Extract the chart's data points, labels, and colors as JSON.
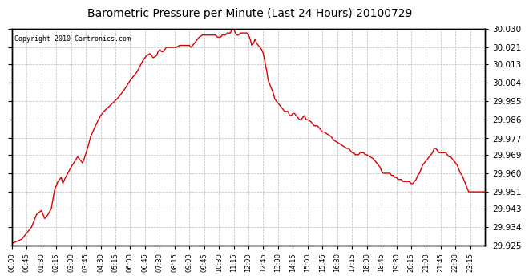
{
  "title": "Barometric Pressure per Minute (Last 24 Hours) 20100729",
  "copyright": "Copyright 2010 Cartronics.com",
  "line_color": "#dd0000",
  "background_color": "#ffffff",
  "grid_color": "#bbbbbb",
  "ylim": [
    29.925,
    30.03
  ],
  "yticks": [
    29.925,
    29.934,
    29.943,
    29.951,
    29.96,
    29.969,
    29.977,
    29.986,
    29.995,
    30.004,
    30.013,
    30.021,
    30.03
  ],
  "xtick_labels": [
    "00:00",
    "00:45",
    "01:30",
    "02:15",
    "03:00",
    "03:45",
    "04:30",
    "05:15",
    "06:00",
    "06:45",
    "07:30",
    "08:15",
    "09:00",
    "09:45",
    "10:30",
    "11:15",
    "12:00",
    "12:45",
    "13:30",
    "14:15",
    "15:00",
    "15:45",
    "16:30",
    "17:15",
    "18:00",
    "18:45",
    "19:30",
    "20:15",
    "21:00",
    "21:45",
    "22:30",
    "23:15"
  ],
  "n_minutes": 1440,
  "key_points": [
    [
      0,
      29.926
    ],
    [
      30,
      29.928
    ],
    [
      60,
      29.934
    ],
    [
      75,
      29.94
    ],
    [
      90,
      29.942
    ],
    [
      100,
      29.938
    ],
    [
      110,
      29.94
    ],
    [
      120,
      29.943
    ],
    [
      130,
      29.952
    ],
    [
      140,
      29.956
    ],
    [
      150,
      29.958
    ],
    [
      155,
      29.955
    ],
    [
      160,
      29.957
    ],
    [
      170,
      29.96
    ],
    [
      180,
      29.963
    ],
    [
      200,
      29.968
    ],
    [
      210,
      29.966
    ],
    [
      215,
      29.965
    ],
    [
      220,
      29.967
    ],
    [
      230,
      29.972
    ],
    [
      240,
      29.978
    ],
    [
      260,
      29.985
    ],
    [
      270,
      29.988
    ],
    [
      280,
      29.99
    ],
    [
      300,
      29.993
    ],
    [
      320,
      29.996
    ],
    [
      330,
      29.998
    ],
    [
      340,
      30.0
    ],
    [
      360,
      30.005
    ],
    [
      380,
      30.009
    ],
    [
      390,
      30.012
    ],
    [
      400,
      30.015
    ],
    [
      410,
      30.017
    ],
    [
      420,
      30.018
    ],
    [
      430,
      30.016
    ],
    [
      440,
      30.017
    ],
    [
      445,
      30.019
    ],
    [
      450,
      30.02
    ],
    [
      455,
      30.019
    ],
    [
      460,
      30.019
    ],
    [
      465,
      30.02
    ],
    [
      470,
      30.021
    ],
    [
      480,
      30.021
    ],
    [
      490,
      30.021
    ],
    [
      500,
      30.021
    ],
    [
      510,
      30.022
    ],
    [
      520,
      30.022
    ],
    [
      530,
      30.022
    ],
    [
      540,
      30.022
    ],
    [
      545,
      30.021
    ],
    [
      550,
      30.022
    ],
    [
      555,
      30.023
    ],
    [
      560,
      30.024
    ],
    [
      565,
      30.025
    ],
    [
      570,
      30.026
    ],
    [
      580,
      30.027
    ],
    [
      590,
      30.027
    ],
    [
      600,
      30.027
    ],
    [
      610,
      30.027
    ],
    [
      620,
      30.027
    ],
    [
      625,
      30.026
    ],
    [
      630,
      30.026
    ],
    [
      635,
      30.026
    ],
    [
      640,
      30.027
    ],
    [
      645,
      30.027
    ],
    [
      650,
      30.027
    ],
    [
      655,
      30.028
    ],
    [
      660,
      30.028
    ],
    [
      665,
      30.028
    ],
    [
      670,
      30.03
    ],
    [
      675,
      30.03
    ],
    [
      680,
      30.028
    ],
    [
      685,
      30.027
    ],
    [
      690,
      30.027
    ],
    [
      695,
      30.028
    ],
    [
      700,
      30.028
    ],
    [
      705,
      30.028
    ],
    [
      710,
      30.028
    ],
    [
      715,
      30.028
    ],
    [
      720,
      30.027
    ],
    [
      725,
      30.025
    ],
    [
      730,
      30.022
    ],
    [
      735,
      30.023
    ],
    [
      740,
      30.025
    ],
    [
      745,
      30.023
    ],
    [
      750,
      30.022
    ],
    [
      755,
      30.021
    ],
    [
      760,
      30.02
    ],
    [
      765,
      30.018
    ],
    [
      770,
      30.014
    ],
    [
      775,
      30.01
    ],
    [
      780,
      30.005
    ],
    [
      785,
      30.003
    ],
    [
      790,
      30.001
    ],
    [
      795,
      29.999
    ],
    [
      800,
      29.996
    ],
    [
      805,
      29.995
    ],
    [
      810,
      29.994
    ],
    [
      820,
      29.992
    ],
    [
      830,
      29.99
    ],
    [
      840,
      29.99
    ],
    [
      845,
      29.988
    ],
    [
      850,
      29.988
    ],
    [
      855,
      29.989
    ],
    [
      860,
      29.989
    ],
    [
      865,
      29.988
    ],
    [
      870,
      29.987
    ],
    [
      875,
      29.986
    ],
    [
      880,
      29.986
    ],
    [
      885,
      29.987
    ],
    [
      890,
      29.988
    ],
    [
      895,
      29.986
    ],
    [
      900,
      29.986
    ],
    [
      910,
      29.985
    ],
    [
      915,
      29.984
    ],
    [
      920,
      29.983
    ],
    [
      925,
      29.983
    ],
    [
      930,
      29.983
    ],
    [
      935,
      29.982
    ],
    [
      940,
      29.981
    ],
    [
      945,
      29.98
    ],
    [
      950,
      29.98
    ],
    [
      960,
      29.979
    ],
    [
      970,
      29.978
    ],
    [
      975,
      29.977
    ],
    [
      980,
      29.976
    ],
    [
      990,
      29.975
    ],
    [
      1000,
      29.974
    ],
    [
      1010,
      29.973
    ],
    [
      1020,
      29.972
    ],
    [
      1025,
      29.972
    ],
    [
      1030,
      29.971
    ],
    [
      1035,
      29.97
    ],
    [
      1040,
      29.97
    ],
    [
      1045,
      29.969
    ],
    [
      1050,
      29.969
    ],
    [
      1055,
      29.969
    ],
    [
      1060,
      29.97
    ],
    [
      1065,
      29.97
    ],
    [
      1070,
      29.97
    ],
    [
      1075,
      29.969
    ],
    [
      1080,
      29.969
    ],
    [
      1090,
      29.968
    ],
    [
      1100,
      29.967
    ],
    [
      1105,
      29.966
    ],
    [
      1110,
      29.965
    ],
    [
      1115,
      29.964
    ],
    [
      1120,
      29.963
    ],
    [
      1125,
      29.961
    ],
    [
      1130,
      29.96
    ],
    [
      1135,
      29.96
    ],
    [
      1140,
      29.96
    ],
    [
      1145,
      29.96
    ],
    [
      1150,
      29.96
    ],
    [
      1155,
      29.959
    ],
    [
      1160,
      29.959
    ],
    [
      1165,
      29.958
    ],
    [
      1170,
      29.958
    ],
    [
      1175,
      29.957
    ],
    [
      1180,
      29.957
    ],
    [
      1185,
      29.957
    ],
    [
      1190,
      29.956
    ],
    [
      1195,
      29.956
    ],
    [
      1200,
      29.956
    ],
    [
      1210,
      29.956
    ],
    [
      1215,
      29.955
    ],
    [
      1220,
      29.955
    ],
    [
      1225,
      29.956
    ],
    [
      1230,
      29.957
    ],
    [
      1235,
      29.959
    ],
    [
      1240,
      29.96
    ],
    [
      1245,
      29.962
    ],
    [
      1250,
      29.964
    ],
    [
      1255,
      29.965
    ],
    [
      1260,
      29.966
    ],
    [
      1265,
      29.967
    ],
    [
      1270,
      29.968
    ],
    [
      1275,
      29.969
    ],
    [
      1280,
      29.97
    ],
    [
      1285,
      29.972
    ],
    [
      1290,
      29.972
    ],
    [
      1295,
      29.971
    ],
    [
      1300,
      29.97
    ],
    [
      1305,
      29.97
    ],
    [
      1310,
      29.97
    ],
    [
      1315,
      29.97
    ],
    [
      1320,
      29.97
    ],
    [
      1325,
      29.969
    ],
    [
      1330,
      29.968
    ],
    [
      1335,
      29.968
    ],
    [
      1340,
      29.967
    ],
    [
      1345,
      29.966
    ],
    [
      1350,
      29.965
    ],
    [
      1355,
      29.964
    ],
    [
      1360,
      29.962
    ],
    [
      1365,
      29.96
    ],
    [
      1370,
      29.959
    ],
    [
      1375,
      29.957
    ],
    [
      1380,
      29.955
    ],
    [
      1385,
      29.953
    ],
    [
      1390,
      29.951
    ],
    [
      1395,
      29.951
    ],
    [
      1400,
      29.951
    ],
    [
      1405,
      29.951
    ],
    [
      1410,
      29.951
    ],
    [
      1415,
      29.951
    ],
    [
      1420,
      29.951
    ],
    [
      1425,
      29.951
    ],
    [
      1430,
      29.951
    ],
    [
      1435,
      29.951
    ],
    [
      1439,
      29.951
    ]
  ]
}
